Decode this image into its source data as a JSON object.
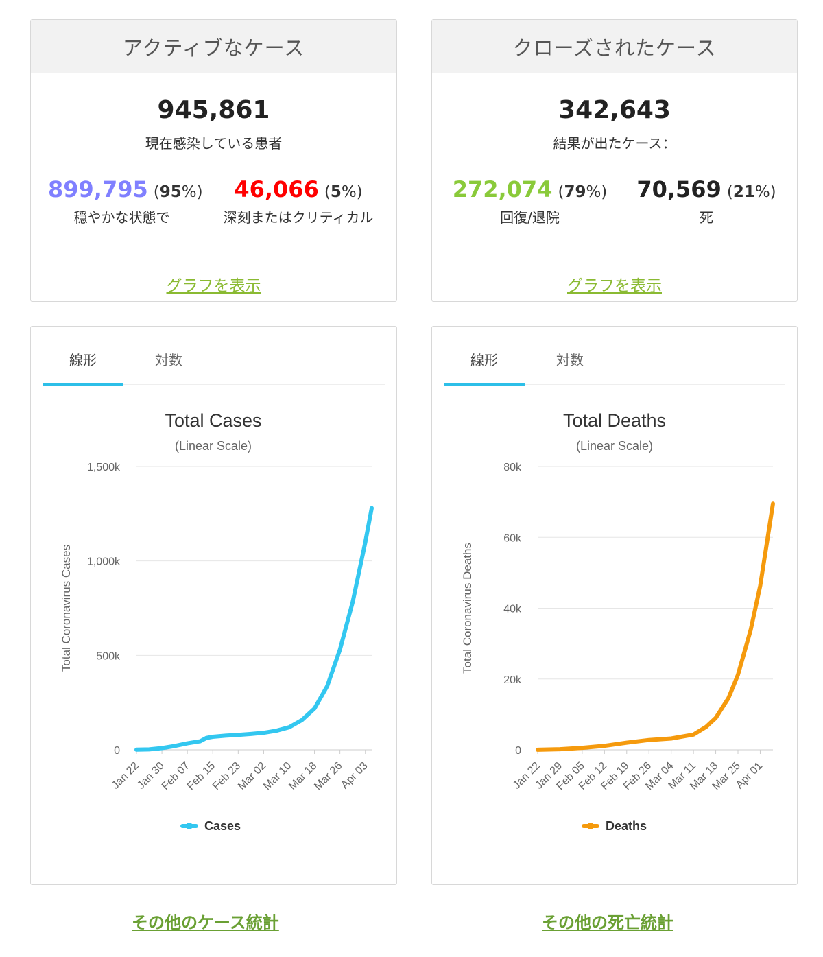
{
  "active": {
    "header": "アクティブなケース",
    "total": "945,861",
    "total_label": "現在感染している患者",
    "mild": {
      "value": "899,795",
      "pct": "95",
      "label": "穏やかな状態で",
      "color": "#8080ff"
    },
    "critical": {
      "value": "46,066",
      "pct": "5",
      "label": "深刻またはクリティカル",
      "color": "#ff0000"
    },
    "graph_link": "グラフを表示"
  },
  "closed": {
    "header": "クローズされたケース",
    "total": "342,643",
    "total_label": "結果が出たケース：",
    "recovered": {
      "value": "272,074",
      "pct": "79",
      "label": "回復/退院",
      "color": "#8aca3a"
    },
    "deaths": {
      "value": "70,569",
      "pct": "21",
      "label": "死",
      "color": "#222222"
    },
    "graph_link": "グラフを表示"
  },
  "tabs": {
    "linear": "線形",
    "log": "対数"
  },
  "links": {
    "more_cases": "その他のケース統計",
    "more_deaths": "その他の死亡統計"
  },
  "chart_data": [
    {
      "type": "line",
      "title": "Total Cases",
      "subtitle": "(Linear Scale)",
      "ylabel": "Total Coronavirus Cases",
      "xlabel": "",
      "ylim": [
        0,
        1500000
      ],
      "y_ticks": [
        {
          "value": 0,
          "label": "0"
        },
        {
          "value": 500000,
          "label": "500k"
        },
        {
          "value": 1000000,
          "label": "1,000k"
        },
        {
          "value": 1500000,
          "label": "1,500k"
        }
      ],
      "x_ticks": [
        "Jan 22",
        "Jan 30",
        "Feb 07",
        "Feb 15",
        "Feb 23",
        "Mar 02",
        "Mar 10",
        "Mar 18",
        "Mar 26",
        "Apr 03"
      ],
      "grid": true,
      "legend_position": "bottom",
      "color": "#33c7f0",
      "series": [
        {
          "name": "Cases",
          "x": [
            "Jan 22",
            "Jan 26",
            "Jan 30",
            "Feb 03",
            "Feb 07",
            "Feb 11",
            "Feb 13",
            "Feb 15",
            "Feb 19",
            "Feb 23",
            "Feb 27",
            "Mar 02",
            "Mar 06",
            "Mar 10",
            "Mar 14",
            "Mar 18",
            "Mar 22",
            "Mar 26",
            "Mar 30",
            "Apr 03",
            "Apr 05"
          ],
          "values": [
            600,
            2000,
            9000,
            20000,
            34000,
            45000,
            63000,
            69000,
            75000,
            79000,
            84000,
            90000,
            101000,
            119000,
            157000,
            219000,
            337000,
            530000,
            782000,
            1100000,
            1280000
          ]
        }
      ]
    },
    {
      "type": "line",
      "title": "Total Deaths",
      "subtitle": "(Linear Scale)",
      "ylabel": "Total Coronavirus Deaths",
      "xlabel": "",
      "ylim": [
        0,
        80000
      ],
      "y_ticks": [
        {
          "value": 0,
          "label": "0"
        },
        {
          "value": 20000,
          "label": "20k"
        },
        {
          "value": 40000,
          "label": "40k"
        },
        {
          "value": 60000,
          "label": "60k"
        },
        {
          "value": 80000,
          "label": "80k"
        }
      ],
      "x_ticks": [
        "Jan 22",
        "Jan 29",
        "Feb 05",
        "Feb 12",
        "Feb 19",
        "Feb 26",
        "Mar 04",
        "Mar 11",
        "Mar 18",
        "Mar 25",
        "Apr 01"
      ],
      "grid": true,
      "legend_position": "bottom",
      "color": "#f59a0d",
      "series": [
        {
          "name": "Deaths",
          "x": [
            "Jan 22",
            "Jan 29",
            "Feb 05",
            "Feb 12",
            "Feb 19",
            "Feb 26",
            "Mar 04",
            "Mar 11",
            "Mar 15",
            "Mar 18",
            "Mar 22",
            "Mar 25",
            "Mar 29",
            "Apr 01",
            "Apr 05"
          ],
          "values": [
            17,
            170,
            565,
            1118,
            2010,
            2770,
            3200,
            4300,
            6500,
            9000,
            14600,
            21200,
            33900,
            46400,
            69500
          ]
        }
      ]
    }
  ]
}
